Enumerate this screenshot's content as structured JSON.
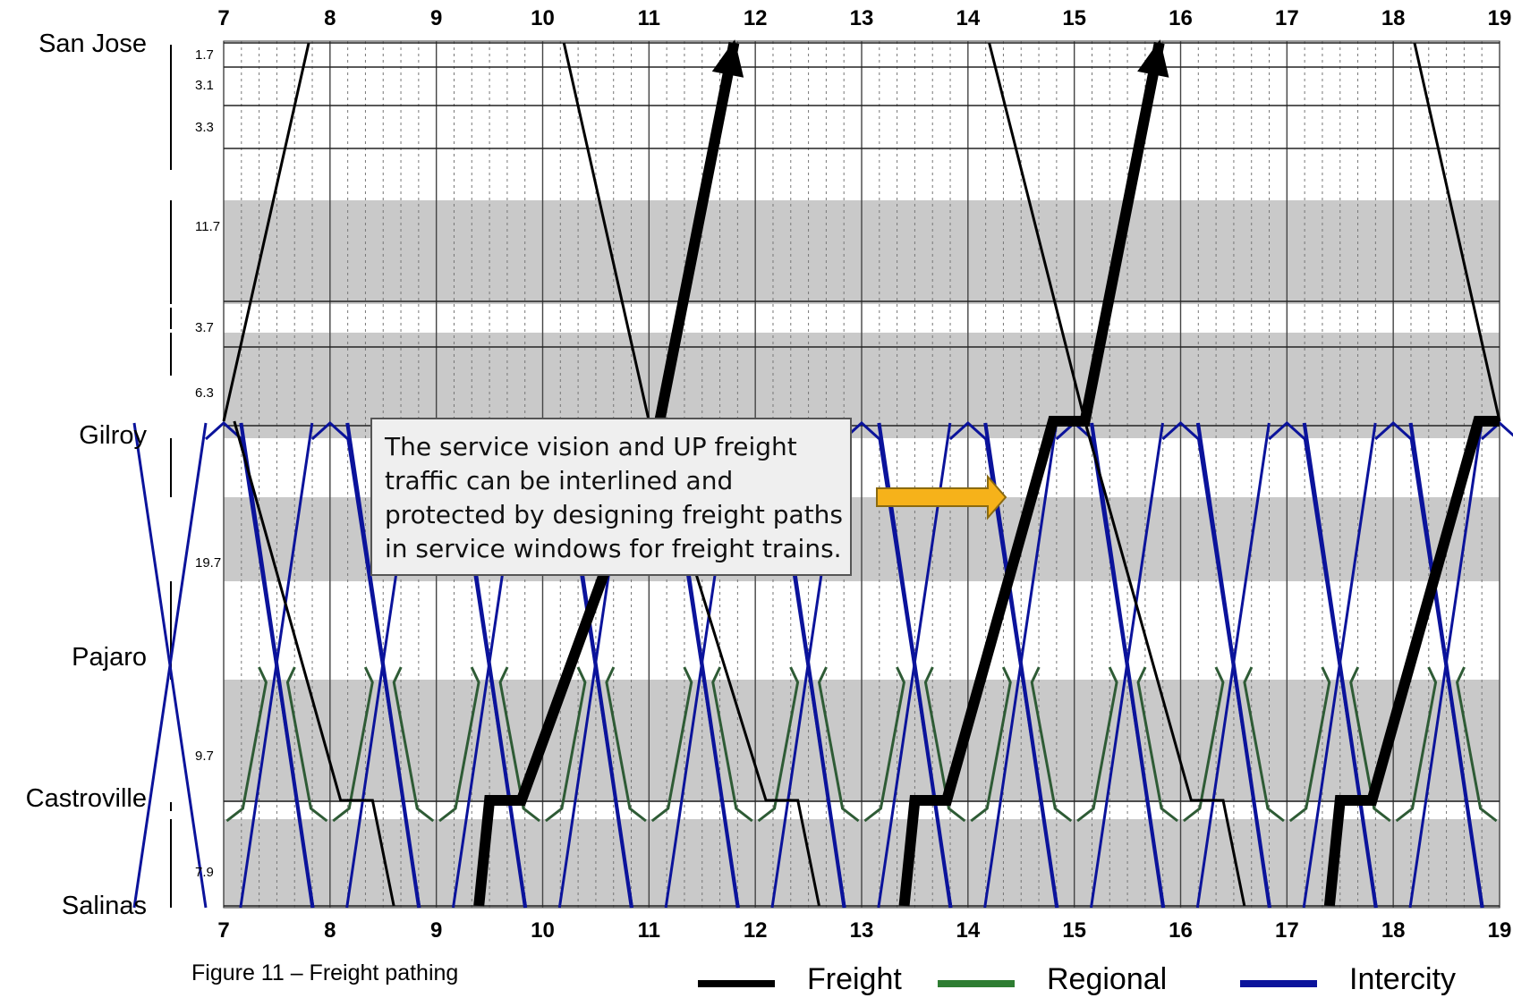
{
  "chart_data": {
    "type": "line",
    "title": "",
    "x_ticks": [
      7,
      8,
      9,
      10,
      11,
      12,
      13,
      14,
      15,
      16,
      17,
      18,
      19
    ],
    "xlim": [
      7,
      19
    ],
    "stations": [
      "San Jose",
      "Gilroy",
      "Pajaro",
      "Castroville",
      "Salinas"
    ],
    "segment_distances": [
      "1.7",
      "3.1",
      "3.3",
      "11.7",
      "3.7",
      "6.3",
      "19.7",
      "9.7",
      "7.9"
    ],
    "grid": true,
    "legend_position": "bottom-right",
    "series": [
      {
        "name": "Freight",
        "color": "#000000",
        "trains": [
          {
            "direction": "northbound",
            "path": [
              [
                7.0,
                "Gilroy"
              ],
              [
                7.8,
                "San Jose"
              ]
            ]
          },
          {
            "direction": "southbound",
            "path": [
              [
                7.1,
                "Gilroy"
              ],
              [
                8.1,
                "Castroville"
              ],
              [
                8.4,
                "Castroville"
              ],
              [
                8.6,
                "Salinas"
              ]
            ]
          },
          {
            "direction": "southbound",
            "path": [
              [
                10.2,
                "San Jose"
              ],
              [
                11.0,
                "Gilroy"
              ],
              [
                12.1,
                "Castroville"
              ],
              [
                12.4,
                "Castroville"
              ],
              [
                12.6,
                "Salinas"
              ]
            ]
          },
          {
            "direction": "northbound",
            "bold": true,
            "path": [
              [
                9.4,
                "Salinas"
              ],
              [
                9.5,
                "Castroville"
              ],
              [
                9.8,
                "Castroville"
              ],
              [
                11.1,
                "Gilroy"
              ],
              [
                11.8,
                "San Jose"
              ]
            ]
          },
          {
            "direction": "southbound",
            "path": [
              [
                14.2,
                "San Jose"
              ],
              [
                15.1,
                "Gilroy"
              ],
              [
                16.1,
                "Castroville"
              ],
              [
                16.4,
                "Castroville"
              ],
              [
                16.6,
                "Salinas"
              ]
            ]
          },
          {
            "direction": "northbound",
            "bold": true,
            "path": [
              [
                13.4,
                "Salinas"
              ],
              [
                13.5,
                "Castroville"
              ],
              [
                13.8,
                "Castroville"
              ],
              [
                14.8,
                "Gilroy"
              ],
              [
                15.1,
                "Gilroy"
              ],
              [
                15.8,
                "San Jose"
              ]
            ]
          },
          {
            "direction": "southbound",
            "path": [
              [
                18.2,
                "San Jose"
              ],
              [
                19.0,
                "Gilroy"
              ]
            ]
          },
          {
            "direction": "northbound",
            "bold": true,
            "path": [
              [
                17.4,
                "Salinas"
              ],
              [
                17.5,
                "Castroville"
              ],
              [
                17.8,
                "Castroville"
              ],
              [
                18.8,
                "Gilroy"
              ],
              [
                19.0,
                "Gilroy"
              ]
            ]
          }
        ]
      },
      {
        "name": "Regional",
        "color": "#2e5b35",
        "trains": [
          {
            "direction": "both",
            "pattern": "hourly",
            "from": "Pajaro",
            "to": "Castroville",
            "crossings": [
              7.5,
              8.5,
              9.5,
              10.5,
              11.5,
              12.5,
              13.5,
              14.5,
              15.5,
              16.5,
              17.5,
              18.5
            ]
          }
        ]
      },
      {
        "name": "Intercity",
        "color": "#0b139b",
        "trains": [
          {
            "direction": "both",
            "pattern": "half-hourly",
            "from": "Gilroy",
            "to": "Salinas",
            "crossings_gilroy": [
              7.0,
              8.0,
              9.0,
              10.0,
              11.0,
              12.0,
              13.0,
              14.0,
              15.0,
              16.0,
              17.0,
              18.0,
              19.0
            ]
          }
        ]
      }
    ],
    "annotation": {
      "lines": [
        "The service vision and UP freight",
        "traffic can be interlined and",
        "protected by designing freight paths",
        "in service windows for freight trains."
      ]
    }
  },
  "caption": "Figure 11 – Freight pathing",
  "legend": {
    "freight": "Freight",
    "regional": "Regional",
    "intercity": "Intercity"
  }
}
